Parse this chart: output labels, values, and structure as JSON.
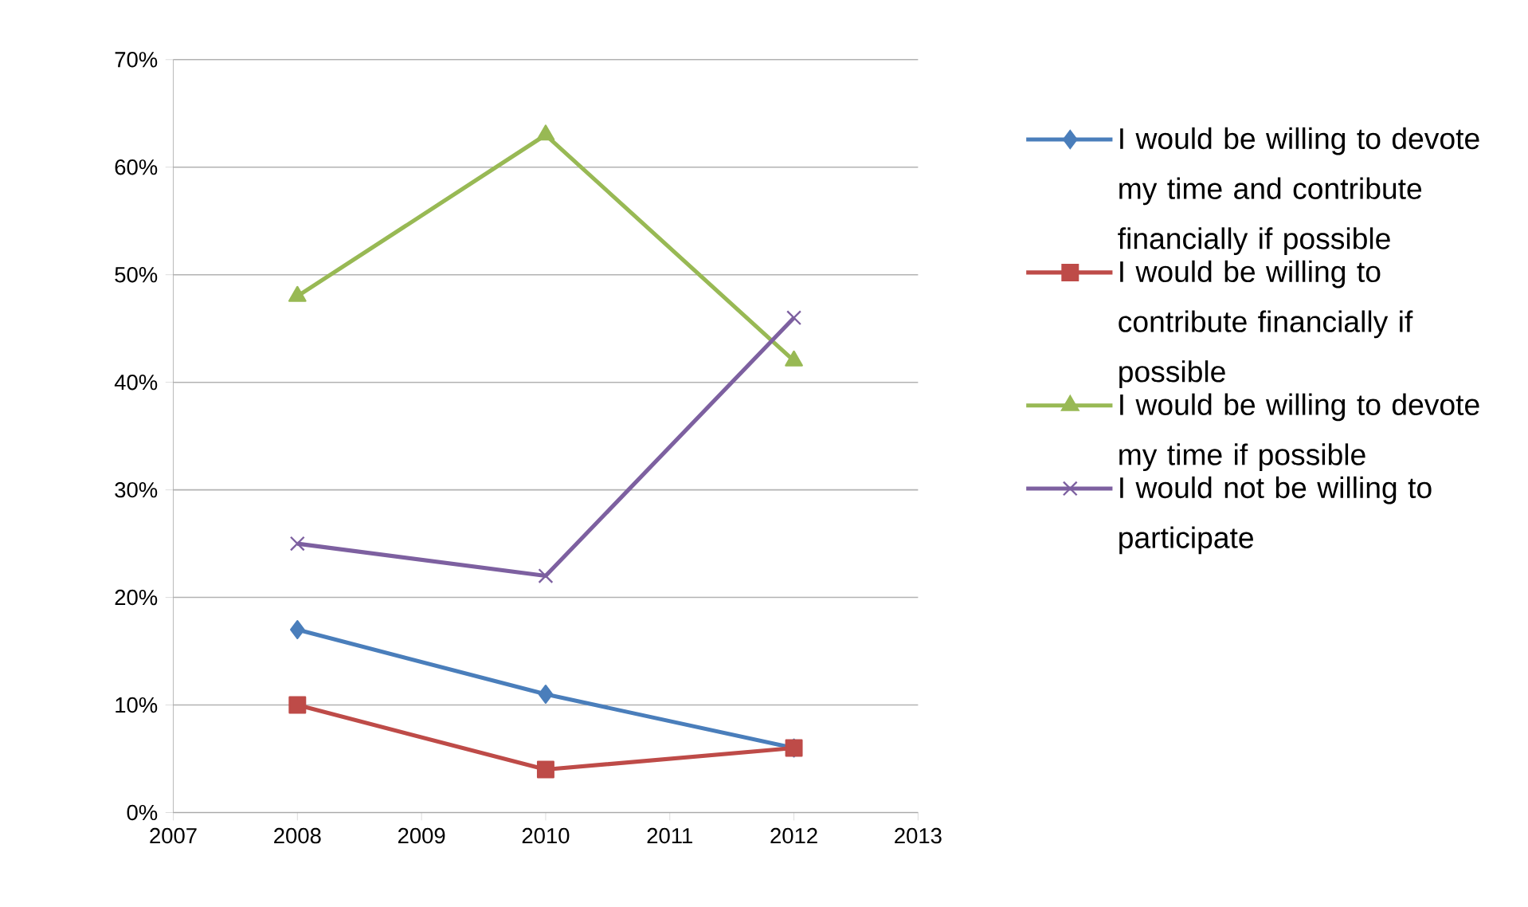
{
  "chart_data": {
    "type": "line",
    "x": [
      2008,
      2010,
      2012
    ],
    "xlim": [
      2007,
      2013
    ],
    "xticks": [
      2007,
      2008,
      2009,
      2010,
      2011,
      2012,
      2013
    ],
    "ylim": [
      0,
      70
    ],
    "yticks": [
      {
        "value": 0,
        "label": "0%"
      },
      {
        "value": 10,
        "label": "10%"
      },
      {
        "value": 20,
        "label": "20%"
      },
      {
        "value": 30,
        "label": "30%"
      },
      {
        "value": 40,
        "label": "40%"
      },
      {
        "value": 50,
        "label": "50%"
      },
      {
        "value": 60,
        "label": "60%"
      },
      {
        "value": 70,
        "label": "70%"
      }
    ],
    "grid": "y",
    "legend": "right",
    "series": [
      {
        "name": "I would be willing to devote my time and contribute financially if possible",
        "color": "#4a7ebb",
        "marker": "diamond",
        "values": [
          17,
          11,
          6
        ]
      },
      {
        "name": "I would be willing to contribute financially if possible",
        "color": "#be4b48",
        "marker": "square",
        "values": [
          10,
          4,
          6
        ]
      },
      {
        "name": "I would be willing to devote my time if possible",
        "color": "#98b954",
        "marker": "triangle",
        "values": [
          48,
          63,
          42
        ]
      },
      {
        "name": "I would not be willing to participate",
        "color": "#7d60a0",
        "marker": "cross",
        "values": [
          25,
          22,
          46
        ]
      }
    ]
  }
}
